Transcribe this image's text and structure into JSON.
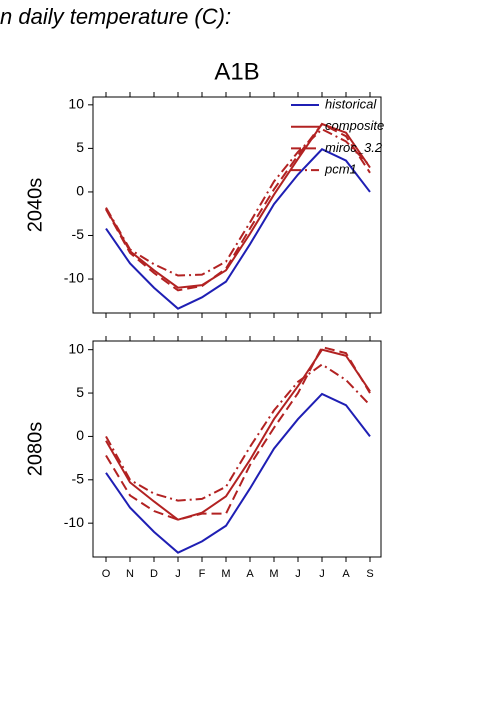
{
  "page_title": "n daily temperature (C):",
  "chart_data": [
    {
      "type": "line",
      "title": "A1B",
      "y_label": "2040s",
      "ylim": [
        -13.9,
        10.9
      ],
      "yticks": [
        -10,
        -5,
        0,
        5,
        10
      ],
      "legend": "top-right",
      "series": [
        {
          "name": "historical",
          "color": "#1f1fb4",
          "style": "solid",
          "values": [
            -4.2,
            -8.2,
            -11.0,
            -13.4,
            -12.1,
            -10.3,
            -6.0,
            -1.4,
            2.0,
            4.9,
            3.6,
            0.0
          ]
        },
        {
          "name": "composite",
          "color": "#b22222",
          "style": "solid",
          "values": [
            -1.9,
            -6.8,
            -9.0,
            -11.0,
            -10.7,
            -9.0,
            -4.8,
            -0.3,
            3.8,
            7.8,
            6.8,
            2.8
          ]
        },
        {
          "name": "miroc_3.2",
          "color": "#b22222",
          "style": "dashed",
          "values": [
            -2.0,
            -7.0,
            -9.3,
            -11.3,
            -10.8,
            -8.8,
            -4.2,
            0.3,
            4.2,
            7.8,
            6.4,
            2.2
          ]
        },
        {
          "name": "pcm1",
          "color": "#b22222",
          "style": "dashdot",
          "values": [
            -1.8,
            -6.6,
            -8.3,
            -9.6,
            -9.5,
            -8.0,
            -3.5,
            1.2,
            4.6,
            7.2,
            5.8,
            3.0
          ]
        }
      ]
    },
    {
      "type": "line",
      "y_label": "2080s",
      "categories": [
        "O",
        "N",
        "D",
        "J",
        "F",
        "M",
        "A",
        "M",
        "J",
        "J",
        "A",
        "S"
      ],
      "ylim": [
        -13.9,
        11.0
      ],
      "yticks": [
        -10,
        -5,
        0,
        5,
        10
      ],
      "series": [
        {
          "color": "#1f1fb4",
          "style": "solid",
          "values": [
            -4.2,
            -8.2,
            -11.0,
            -13.4,
            -12.1,
            -10.3,
            -6.0,
            -1.4,
            2.0,
            4.9,
            3.6,
            0.0
          ]
        },
        {
          "color": "#b22222",
          "style": "solid",
          "values": [
            -0.5,
            -5.3,
            -7.5,
            -9.6,
            -8.8,
            -6.9,
            -2.7,
            2.0,
            5.8,
            10.0,
            9.3,
            5.2
          ]
        },
        {
          "color": "#b22222",
          "style": "dashed",
          "values": [
            -2.2,
            -6.8,
            -8.6,
            -9.6,
            -8.9,
            -8.9,
            -3.3,
            1.0,
            5.0,
            10.3,
            9.6,
            5.0
          ]
        },
        {
          "color": "#b22222",
          "style": "dashdot",
          "values": [
            0.0,
            -5.0,
            -6.6,
            -7.4,
            -7.2,
            -5.8,
            -1.2,
            3.0,
            6.3,
            8.3,
            6.5,
            3.6
          ]
        }
      ]
    }
  ]
}
